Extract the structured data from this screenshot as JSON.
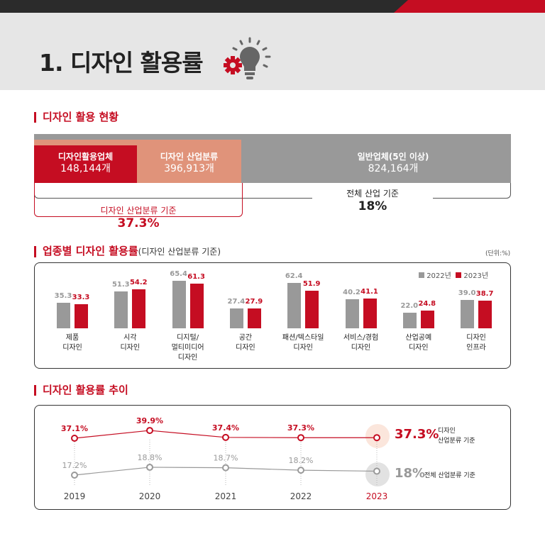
{
  "header": {
    "title": "1. 디자인 활용률"
  },
  "section1": {
    "heading": "디자인 활용 현황",
    "active": {
      "label": "디자인활용업체",
      "value": "148,144개"
    },
    "industry": {
      "label": "디자인 산업분류",
      "value": "396,913개"
    },
    "general": {
      "label": "일반업체(5인 이상)",
      "value": "824,164개"
    },
    "total_label": "전체 산업 기준",
    "total_value": "18%",
    "industry_label": "디자인 산업분류 기준",
    "industry_value": "37.3%"
  },
  "section2": {
    "heading": "업종별 디자인 활용률",
    "heading_sub": "(디자인 산업분류 기준)",
    "unit": "(단위:%)"
  },
  "section3": {
    "heading": "디자인 활용률 추이",
    "red_big": "37.3%",
    "red_label1": "디자인",
    "red_label2": "산업분류 기준",
    "gray_big": "18%",
    "gray_label": "전체 산업분류 기준"
  },
  "colors": {
    "red": "#c50d22",
    "gray": "#999999",
    "salmon": "#e0937a"
  },
  "chart_data": [
    {
      "type": "bar",
      "categories": [
        [
          "제품",
          "디자인"
        ],
        [
          "시각",
          "디자인"
        ],
        [
          "디지털/",
          "멀티미디어",
          "디자인"
        ],
        [
          "공간",
          "디자인"
        ],
        [
          "패션/텍스타일",
          "디자인"
        ],
        [
          "서비스/경험",
          "디자인"
        ],
        [
          "산업공예",
          "디자인"
        ],
        [
          "디자인",
          "인프라"
        ]
      ],
      "series": [
        {
          "name": "2022년",
          "values": [
            "35.3",
            "51.3",
            "65.4",
            "27.4",
            "62.4",
            "40.2",
            "22.0",
            "39.0"
          ]
        },
        {
          "name": "2023년",
          "values": [
            "33.3",
            "54.2",
            "61.3",
            "27.9",
            "51.9",
            "41.1",
            "24.8",
            "38.7"
          ]
        }
      ],
      "legend": "top-right"
    },
    {
      "type": "line",
      "x": [
        "2019",
        "2020",
        "2021",
        "2022",
        "2023"
      ],
      "series": [
        {
          "name": "디자인 산업분류 기준",
          "values": [
            37.1,
            39.9,
            37.4,
            37.3,
            37.3
          ],
          "labels": [
            "37.1%",
            "39.9%",
            "37.4%",
            "37.3%",
            ""
          ]
        },
        {
          "name": "전체 산업분류 기준",
          "values": [
            17.2,
            18.8,
            18.7,
            18.2,
            18
          ],
          "labels": [
            "17.2%",
            "18.8%",
            "18.7%",
            "18.2%",
            ""
          ]
        }
      ]
    }
  ]
}
